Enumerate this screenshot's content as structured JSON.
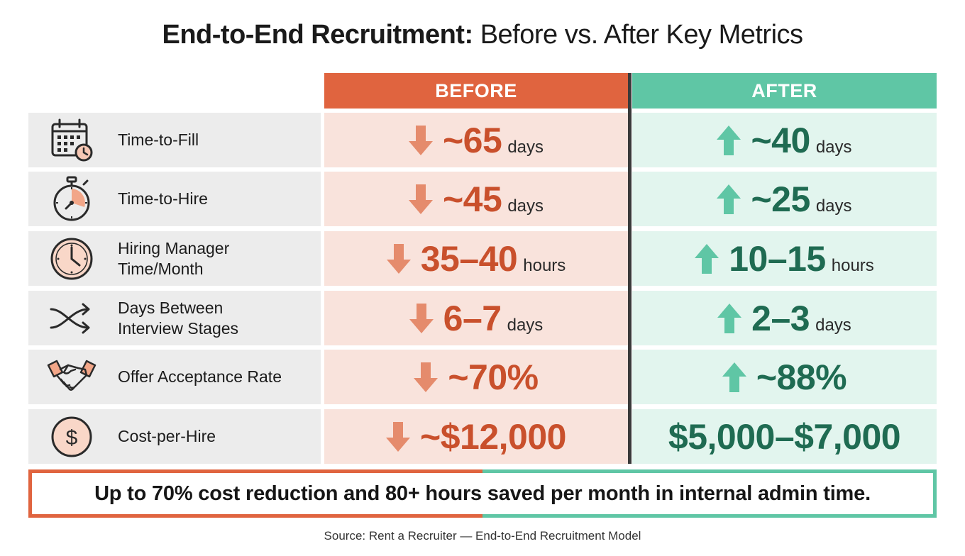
{
  "title": {
    "bold": "End-to-End Recruitment:",
    "light": "Before vs. After Key Metrics"
  },
  "headers": {
    "before": "BEFORE",
    "after": "AFTER"
  },
  "rows": [
    {
      "metric": "Time-to-Fill",
      "icon": "calendar-clock-icon",
      "before": {
        "value": "~65",
        "unit": "days"
      },
      "after": {
        "value": "~40",
        "unit": "days"
      }
    },
    {
      "metric": "Time-to-Hire",
      "icon": "stopwatch-icon",
      "before": {
        "value": "~45",
        "unit": "days"
      },
      "after": {
        "value": "~25",
        "unit": "days"
      }
    },
    {
      "metric": "Hiring Manager\nTime/Month",
      "icon": "clock-icon",
      "before": {
        "value": "35–40",
        "unit": "hours"
      },
      "after": {
        "value": "10–15",
        "unit": "hours"
      }
    },
    {
      "metric": "Days Between\nInterview Stages",
      "icon": "shuffle-arrows-icon",
      "before": {
        "value": "6–7",
        "unit": "days"
      },
      "after": {
        "value": "2–3",
        "unit": "days"
      }
    },
    {
      "metric": "Offer Acceptance Rate",
      "icon": "handshake-icon",
      "before": {
        "value": "~70%",
        "unit": ""
      },
      "after": {
        "value": "~88%",
        "unit": ""
      }
    },
    {
      "metric": "Cost-per-Hire",
      "icon": "dollar-coin-icon",
      "before": {
        "value": "~$12,000",
        "unit": ""
      },
      "after": {
        "value": "$5,000–$7,000",
        "unit": ""
      }
    }
  ],
  "banner": "Up to 70% cost reduction and 80+ hours saved per month in internal admin time.",
  "source": "Source: Rent a Recruiter — End-to-End Recruitment Model",
  "colors": {
    "before_accent": "#e0643f",
    "after_accent": "#5fc6a5",
    "before_cell": "#f9e3dc",
    "after_cell": "#e2f5ee",
    "before_text": "#c9502c",
    "after_text": "#1f6b52"
  },
  "chart_data": {
    "type": "table",
    "title": "End-to-End Recruitment: Before vs. After Key Metrics",
    "columns": [
      "BEFORE",
      "AFTER"
    ],
    "rows": [
      {
        "metric": "Time-to-Fill",
        "before": "~65 days",
        "after": "~40 days",
        "before_arrow": "down",
        "after_arrow": "up"
      },
      {
        "metric": "Time-to-Hire",
        "before": "~45 days",
        "after": "~25 days",
        "before_arrow": "down",
        "after_arrow": "up"
      },
      {
        "metric": "Hiring Manager Time/Month",
        "before": "35–40 hours",
        "after": "10–15 hours",
        "before_arrow": "down",
        "after_arrow": "up"
      },
      {
        "metric": "Days Between Interview Stages",
        "before": "6–7 days",
        "after": "2–3 days",
        "before_arrow": "down",
        "after_arrow": "up"
      },
      {
        "metric": "Offer Acceptance Rate",
        "before": "~70%",
        "after": "~88%",
        "before_arrow": "down",
        "after_arrow": "up"
      },
      {
        "metric": "Cost-per-Hire",
        "before": "~$12,000",
        "after": "$5,000–$7,000",
        "before_arrow": "down",
        "after_arrow": "none"
      }
    ]
  }
}
